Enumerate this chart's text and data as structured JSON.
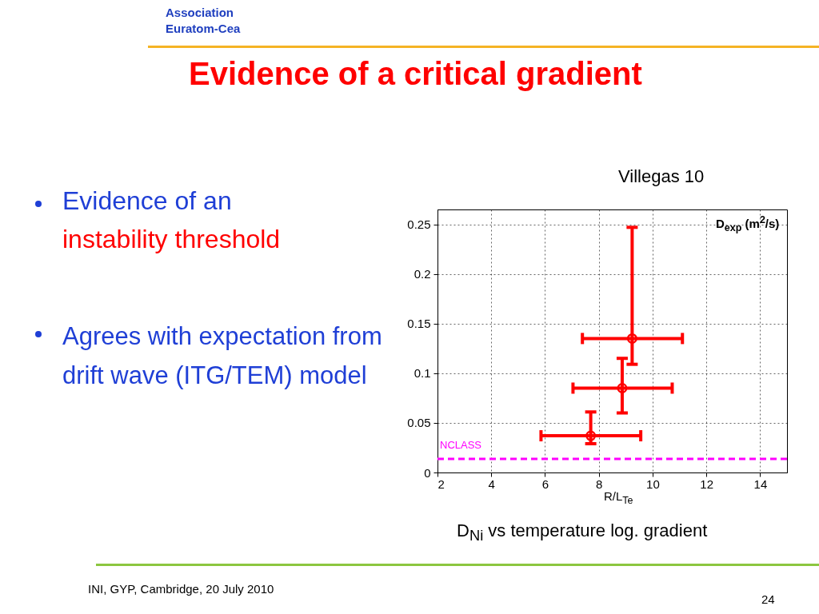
{
  "chart_data": {
    "type": "scatter",
    "title": "Evidence of a critical gradient",
    "xlabel": "R/L$_{Te}$",
    "ylabel": "D$_{exp}$ (m$^{2}$/s)",
    "annotations": [
      "Association Euratom-Cea",
      "Evidence of an",
      "instability threshold",
      "Agrees with expectation from drift wave (ITG/TEM) model",
      "Villegas 10",
      "D$_{Ni}$ vs temperature log. gradient",
      "INI, GYP, Cambridge, 20 July 2010",
      "24"
    ],
    "series": [
      {
        "x": [
          9.24,
          8.87,
          7.7
        ],
        "values": [
          0.135,
          0.085,
          0.037
        ],
        "errors": [
          [
            0.109,
            0.247
          ],
          [
            0.06,
            0.115
          ],
          [
            0.029,
            0.061
          ]
        ],
        "xerrors": [
          [
            7.39,
            11.11
          ],
          [
            7.04,
            10.73
          ],
          [
            5.85,
            9.56
          ]
        ],
        "color": "#ff0000"
      }
    ],
    "ref_lines": [
      {
        "axis": "y",
        "value": 0.0137,
        "label": "NCLASS",
        "color": "#ff00ff",
        "line_style": "dashed"
      }
    ],
    "xlim": [
      2,
      15
    ],
    "xticks": [
      2,
      4,
      6,
      8,
      10,
      12,
      14
    ],
    "ylim": [
      0,
      0.265
    ],
    "yticks": [
      0,
      0.05,
      0.1,
      0.15,
      0.2,
      0.25
    ],
    "grid": true,
    "marker": "circle"
  }
}
